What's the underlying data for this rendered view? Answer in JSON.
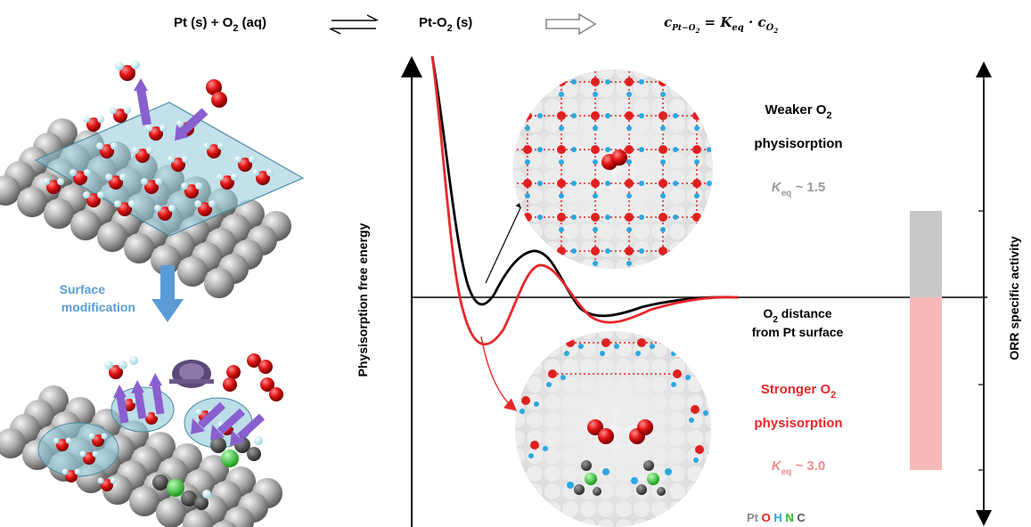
{
  "header": {
    "reactant": "Pt (s) + O",
    "reactant_sub": "2",
    "reactant_tail": " (aq)",
    "product": "Pt-O",
    "product_sub": "2",
    "product_tail": " (s)",
    "eq_c": "c",
    "eq_c_sub": "Pt−O",
    "eq_c_sub2": "2",
    "eq_mid": " = K",
    "eq_k_sub": "eq",
    "eq_dot": " · c",
    "eq_o_sub": "O",
    "eq_o_sub2": "2"
  },
  "left": {
    "surface_modification": [
      "Surface",
      "modification"
    ]
  },
  "plot": {
    "ylabel": "Physisorption free energy",
    "xlabel_line1_pre": "O",
    "xlabel_line1_sub": "2",
    "xlabel_line1_post": " distance",
    "xlabel_line2": "from Pt surface"
  },
  "weaker": {
    "line1_pre": "Weaker O",
    "line1_sub": "2",
    "line2": "physisorption",
    "keq_k": "K",
    "keq_sub": "eq",
    "keq_val": " ~ 1.5",
    "color": "#999999"
  },
  "stronger": {
    "line1_pre": "Stronger O",
    "line1_sub": "2",
    "line2": "physisorption",
    "keq_k": "K",
    "keq_sub": "eq",
    "keq_val": " ~ 3.0",
    "color": "#e8282b",
    "keq_color": "#f08e8e"
  },
  "legend": {
    "pt": "Pt",
    "o": "O",
    "h": "H",
    "n": "N",
    "c": "C",
    "pt_color": "#888888",
    "o_color": "#e02020",
    "h_color": "#2aa8e0",
    "n_color": "#22c02a",
    "c_color": "#555555"
  },
  "activity_axis": {
    "label": "ORR specific activity",
    "gray_bar_color": "#c8c8c8",
    "pink_bar_color": "#f7b8b8"
  }
}
